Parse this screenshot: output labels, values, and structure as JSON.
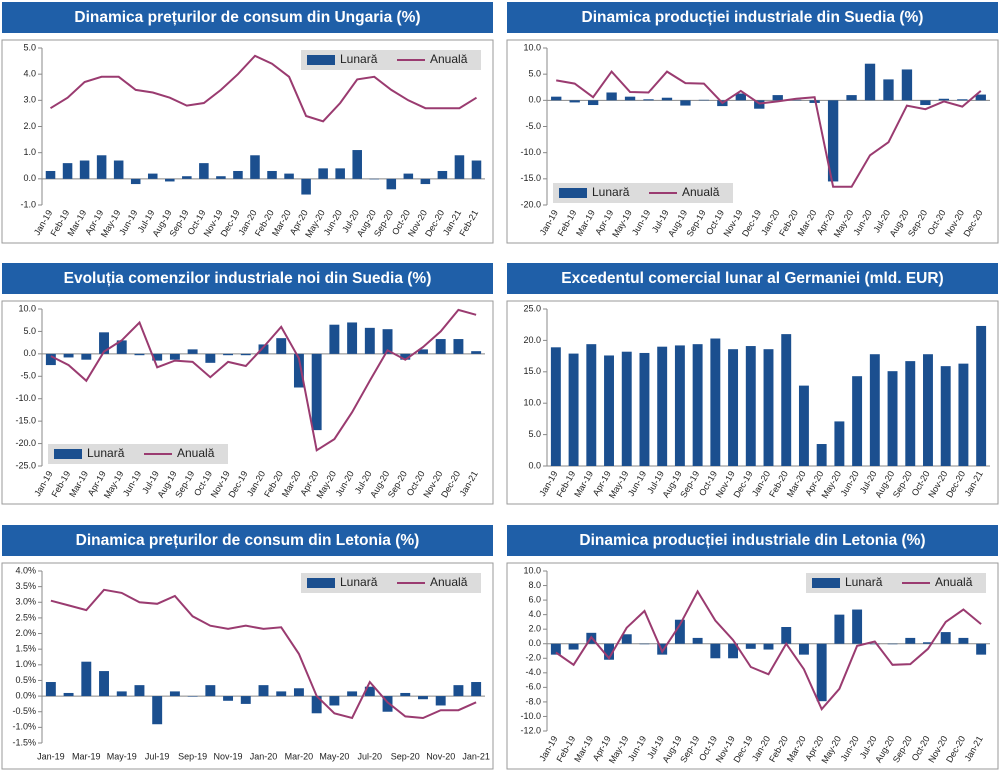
{
  "chart_data": [
    {
      "type": "combo",
      "title": "Dinamica prețurilor de consum din Ungaria (%)",
      "categories": [
        "Jan-19",
        "Feb-19",
        "Mar-19",
        "Apr-19",
        "May-19",
        "Jun-19",
        "Jul-19",
        "Aug-19",
        "Sep-19",
        "Oct-19",
        "Nov-19",
        "Dec-19",
        "Jan-20",
        "Feb-20",
        "Mar-20",
        "Apr-20",
        "May-20",
        "Jun-20",
        "Jul-20",
        "Aug-20",
        "Sep-20",
        "Oct-20",
        "Nov-20",
        "Dec-20",
        "Jan-21",
        "Feb-21"
      ],
      "series": [
        {
          "name": "Lunară",
          "type": "bar",
          "color": "#1b4f8f",
          "values": [
            0.3,
            0.6,
            0.7,
            0.9,
            0.7,
            -0.2,
            0.2,
            -0.1,
            0.1,
            0.6,
            0.1,
            0.3,
            0.9,
            0.3,
            0.2,
            -0.6,
            0.4,
            0.4,
            1.1,
            0.0,
            -0.4,
            0.2,
            -0.2,
            0.3,
            0.9,
            0.7
          ]
        },
        {
          "name": "Anuală",
          "type": "line",
          "color": "#9a3b70",
          "values": [
            2.7,
            3.1,
            3.7,
            3.9,
            3.9,
            3.4,
            3.3,
            3.1,
            2.8,
            2.9,
            3.4,
            4.0,
            4.7,
            4.4,
            3.9,
            2.4,
            2.2,
            2.9,
            3.8,
            3.9,
            3.4,
            3.0,
            2.7,
            2.7,
            2.7,
            3.1
          ]
        }
      ],
      "ylim": [
        -1,
        5
      ],
      "yticks": [
        {
          "value": -1,
          "label": "-1.0"
        },
        {
          "value": 0,
          "label": "0.0"
        },
        {
          "value": 1,
          "label": "1.0"
        },
        {
          "value": 2,
          "label": "2.0"
        },
        {
          "value": 3,
          "label": "3.0"
        },
        {
          "value": 4,
          "label": "4.0"
        },
        {
          "value": 5,
          "label": "5.0"
        }
      ],
      "legend": "upper right"
    },
    {
      "type": "combo",
      "title": "Dinamica producției industriale din Suedia (%)",
      "categories": [
        "Jan-19",
        "Feb-19",
        "Mar-19",
        "Apr-19",
        "May-19",
        "Jun-19",
        "Jul-19",
        "Aug-19",
        "Sep-19",
        "Oct-19",
        "Nov-19",
        "Dec-19",
        "Jan-20",
        "Feb-20",
        "Mar-20",
        "Apr-20",
        "May-20",
        "Jun-20",
        "Jul-20",
        "Aug-20",
        "Sep-20",
        "Oct-20",
        "Nov-20",
        "Dec-20"
      ],
      "series": [
        {
          "name": "Lunară",
          "type": "bar",
          "color": "#1b4f8f",
          "values": [
            0.7,
            -0.4,
            -0.9,
            1.5,
            0.7,
            0.2,
            0.5,
            -1.0,
            0.1,
            -1.1,
            1.3,
            -1.6,
            1.0,
            0.1,
            -0.5,
            -15.5,
            1.0,
            7.0,
            4.0,
            5.9,
            -0.9,
            0.3,
            0.2,
            1.1
          ]
        },
        {
          "name": "Anuală",
          "type": "line",
          "color": "#9a3b70",
          "values": [
            3.8,
            3.2,
            0.6,
            5.5,
            1.6,
            1.5,
            5.5,
            3.3,
            3.2,
            -0.5,
            1.8,
            -0.6,
            -0.2,
            0.3,
            0.6,
            -16.5,
            -16.5,
            -10.5,
            -8.0,
            -1.0,
            -1.7,
            -0.2,
            -1.2,
            1.8
          ]
        }
      ],
      "ylim": [
        -20,
        10
      ],
      "yticks": [
        {
          "value": -20,
          "label": "-20.0"
        },
        {
          "value": -15,
          "label": "-15.0"
        },
        {
          "value": -10,
          "label": "-10.0"
        },
        {
          "value": -5,
          "label": "-5.0"
        },
        {
          "value": 0,
          "label": "0.0"
        },
        {
          "value": 5,
          "label": "5.0"
        },
        {
          "value": 10,
          "label": "10.0"
        }
      ],
      "legend": "lower left"
    },
    {
      "type": "combo",
      "title": "Evoluția comenzilor industriale noi din Suedia (%)",
      "categories": [
        "Jan-19",
        "Feb-19",
        "Mar-19",
        "Apr-19",
        "May-19",
        "Jun-19",
        "Jul-19",
        "Aug-19",
        "Sep-19",
        "Oct-19",
        "Nov-19",
        "Dec-19",
        "Jan-20",
        "Feb-20",
        "Mar-20",
        "Apr-20",
        "May-20",
        "Jun-20",
        "Jul-20",
        "Aug-20",
        "Sep-20",
        "Oct-20",
        "Nov-20",
        "Dec-20",
        "Jan-21"
      ],
      "series": [
        {
          "name": "Lunară",
          "type": "bar",
          "color": "#1b4f8f",
          "values": [
            -2.5,
            -0.8,
            -1.3,
            4.8,
            3.0,
            -0.3,
            -1.5,
            -1.3,
            1.0,
            -2.0,
            -0.3,
            -0.3,
            2.1,
            3.5,
            -7.5,
            -17.0,
            6.5,
            7.0,
            5.8,
            5.5,
            -1.3,
            1.0,
            3.3,
            3.3,
            0.6
          ]
        },
        {
          "name": "Anuală",
          "type": "line",
          "color": "#9a3b70",
          "values": [
            -0.5,
            -2.5,
            -6.0,
            0.5,
            3.0,
            7.0,
            -3.0,
            -1.5,
            -1.8,
            -5.2,
            -1.8,
            -2.7,
            1.5,
            6.0,
            -1.0,
            -21.5,
            -19.0,
            -13.0,
            -6.0,
            0.8,
            -1.3,
            1.5,
            5.0,
            9.8,
            8.7
          ]
        }
      ],
      "ylim": [
        -25,
        10
      ],
      "yticks": [
        {
          "value": -25,
          "label": "-25.0"
        },
        {
          "value": -20,
          "label": "-20.0"
        },
        {
          "value": -15,
          "label": "-15.0"
        },
        {
          "value": -10,
          "label": "-10.0"
        },
        {
          "value": -5,
          "label": "-5.0"
        },
        {
          "value": 0,
          "label": "0.0"
        },
        {
          "value": 5,
          "label": "5.0"
        },
        {
          "value": 10,
          "label": "10.0"
        }
      ],
      "legend": "lower left"
    },
    {
      "type": "bar",
      "title": "Excedentul comercial lunar al Germaniei (mld. EUR)",
      "categories": [
        "Jan-19",
        "Feb-19",
        "Mar-19",
        "Apr-19",
        "May-19",
        "Jun-19",
        "Jul-19",
        "Aug-19",
        "Sep-19",
        "Oct-19",
        "Nov-19",
        "Dec-19",
        "Jan-20",
        "Feb-20",
        "Mar-20",
        "Apr-20",
        "May-20",
        "Jun-20",
        "Jul-20",
        "Aug-20",
        "Sep-20",
        "Oct-20",
        "Nov-20",
        "Dec-20",
        "Jan-21"
      ],
      "series": [
        {
          "type": "bar",
          "color": "#1b4f8f",
          "values": [
            18.9,
            17.9,
            19.4,
            17.6,
            18.2,
            18.0,
            19.0,
            19.2,
            19.4,
            20.3,
            18.6,
            19.1,
            18.6,
            21.0,
            12.8,
            3.5,
            7.1,
            14.3,
            17.8,
            15.1,
            16.7,
            17.8,
            15.9,
            16.3,
            22.3
          ]
        }
      ],
      "ylim": [
        0,
        25
      ],
      "yticks": [
        {
          "value": 0,
          "label": "0.0"
        },
        {
          "value": 5,
          "label": "5.0"
        },
        {
          "value": 10,
          "label": "10.0"
        },
        {
          "value": 15,
          "label": "15.0"
        },
        {
          "value": 20,
          "label": "20.0"
        },
        {
          "value": 25,
          "label": "25.0"
        }
      ]
    },
    {
      "type": "combo",
      "title": "Dinamica prețurilor de consum din Letonia (%)",
      "categories": [
        "Jan-19",
        null,
        "Mar-19",
        null,
        "May-19",
        null,
        "Jul-19",
        null,
        "Sep-19",
        null,
        "Nov-19",
        null,
        "Jan-20",
        null,
        "Mar-20",
        null,
        "May-20",
        null,
        "Jul-20",
        null,
        "Sep-20",
        null,
        "Nov-20",
        null,
        "Jan-21"
      ],
      "series": [
        {
          "name": "Lunară",
          "type": "bar",
          "color": "#1b4f8f",
          "values": [
            0.45,
            0.1,
            1.1,
            0.8,
            0.15,
            0.35,
            -0.9,
            0.15,
            0.0,
            0.35,
            -0.15,
            -0.25,
            0.35,
            0.15,
            0.25,
            -0.55,
            -0.3,
            0.15,
            0.3,
            -0.5,
            0.1,
            -0.1,
            -0.3,
            0.35,
            0.45
          ]
        },
        {
          "name": "Anuală",
          "type": "line",
          "color": "#9a3b70",
          "values": [
            3.05,
            2.9,
            2.75,
            3.4,
            3.3,
            3.0,
            2.95,
            3.2,
            2.55,
            2.25,
            2.15,
            2.25,
            2.15,
            2.2,
            1.35,
            0.0,
            -0.55,
            -0.7,
            0.45,
            -0.2,
            -0.65,
            -0.7,
            -0.45,
            -0.45,
            -0.2
          ]
        }
      ],
      "ylim": [
        -1.5,
        4.0
      ],
      "yticks": [
        {
          "value": -1.5,
          "label": "-1.5%"
        },
        {
          "value": -1,
          "label": "-1.0%"
        },
        {
          "value": -0.5,
          "label": "-0.5%"
        },
        {
          "value": 0,
          "label": "0.0%"
        },
        {
          "value": 0.5,
          "label": "0.5%"
        },
        {
          "value": 1,
          "label": "1.0%"
        },
        {
          "value": 1.5,
          "label": "1.5%"
        },
        {
          "value": 2,
          "label": "2.0%"
        },
        {
          "value": 2.5,
          "label": "2.5%"
        },
        {
          "value": 3,
          "label": "3.0%"
        },
        {
          "value": 3.5,
          "label": "3.5%"
        },
        {
          "value": 4,
          "label": "4.0%"
        }
      ],
      "legend": "upper right",
      "xlabel_rotation": 0
    },
    {
      "type": "combo",
      "title": "Dinamica producției industriale din Letonia (%)",
      "categories": [
        "Jan-19",
        "Feb-19",
        "Mar-19",
        "Apr-19",
        "May-19",
        "Jun-19",
        "Jul-19",
        "Aug-19",
        "Sep-19",
        "Oct-19",
        "Nov-19",
        "Dec-19",
        "Jan-20",
        "Feb-20",
        "Mar-20",
        "Apr-20",
        "May-20",
        "Jun-20",
        "Jul-20",
        "Aug-20",
        "Sep-20",
        "Oct-20",
        "Nov-20",
        "Dec-20",
        "Jan-21"
      ],
      "series": [
        {
          "name": "Lunară",
          "type": "bar",
          "color": "#1b4f8f",
          "values": [
            -1.5,
            -0.8,
            1.5,
            -2.2,
            1.3,
            0.0,
            -1.5,
            3.3,
            0.8,
            -2.0,
            -2.0,
            -0.7,
            -0.8,
            2.3,
            -1.5,
            -7.9,
            4.0,
            4.7,
            0.0,
            0.0,
            0.8,
            0.2,
            1.6,
            0.8,
            -1.5
          ]
        },
        {
          "name": "Anuală",
          "type": "line",
          "color": "#9a3b70",
          "values": [
            -1.2,
            -2.9,
            0.9,
            -2.0,
            2.2,
            4.5,
            -1.1,
            2.6,
            7.2,
            3.2,
            0.5,
            -3.2,
            -4.2,
            0.0,
            -3.5,
            -9.0,
            -6.2,
            -0.3,
            0.3,
            -2.9,
            -2.8,
            -0.7,
            3.0,
            4.7,
            2.7
          ]
        }
      ],
      "ylim": [
        -12,
        10
      ],
      "yticks": [
        {
          "value": -12,
          "label": "-12.0"
        },
        {
          "value": -10,
          "label": "-10.0"
        },
        {
          "value": -8,
          "label": "-8.0"
        },
        {
          "value": -6,
          "label": "-6.0"
        },
        {
          "value": -4,
          "label": "-4.0"
        },
        {
          "value": -2,
          "label": "-2.0"
        },
        {
          "value": 0,
          "label": "0.0"
        },
        {
          "value": 2,
          "label": "2.0"
        },
        {
          "value": 4,
          "label": "4.0"
        },
        {
          "value": 6,
          "label": "6.0"
        },
        {
          "value": 8,
          "label": "8.0"
        },
        {
          "value": 10,
          "label": "10.0"
        }
      ],
      "legend": "upper right"
    }
  ]
}
